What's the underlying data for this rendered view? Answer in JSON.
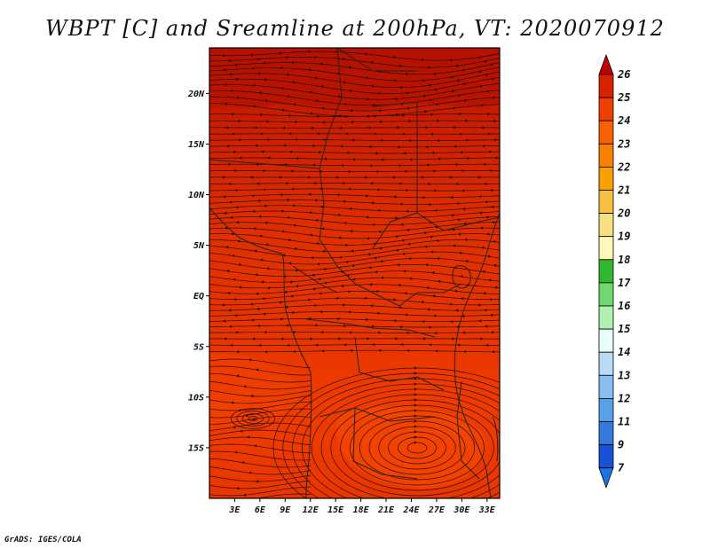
{
  "title": "WBPT [C] and Sreamline at 200hPa, VT: 2020070912",
  "footer": "GrADS: IGES/COLA",
  "map": {
    "lat_labels": [
      "20N",
      "15N",
      "10N",
      "5N",
      "EQ",
      "5S",
      "10S",
      "15S"
    ],
    "lon_labels": [
      "3E",
      "6E",
      "9E",
      "12E",
      "15E",
      "18E",
      "21E",
      "24E",
      "27E",
      "30E",
      "33E"
    ],
    "lat_range": [
      -20,
      24.5
    ],
    "lon_range": [
      0,
      34.5
    ],
    "field_colors": {
      "dark": "#c01800",
      "mid": "#e43200",
      "light": "#f84600"
    }
  },
  "colorbar": {
    "labels": [
      "26",
      "25",
      "24",
      "23",
      "22",
      "21",
      "20",
      "19",
      "18",
      "17",
      "16",
      "15",
      "14",
      "13",
      "12",
      "11",
      "9",
      "7"
    ],
    "colors": [
      "#c00000",
      "#d82200",
      "#f04000",
      "#f86000",
      "#f88000",
      "#f8a000",
      "#f8c040",
      "#f8e080",
      "#fff8b8",
      "#30b830",
      "#70d870",
      "#b0f0b0",
      "#e8fff8",
      "#b8dcf8",
      "#88bff0",
      "#58a0e8",
      "#3478e0",
      "#1850d8",
      "#2070e8"
    ]
  }
}
